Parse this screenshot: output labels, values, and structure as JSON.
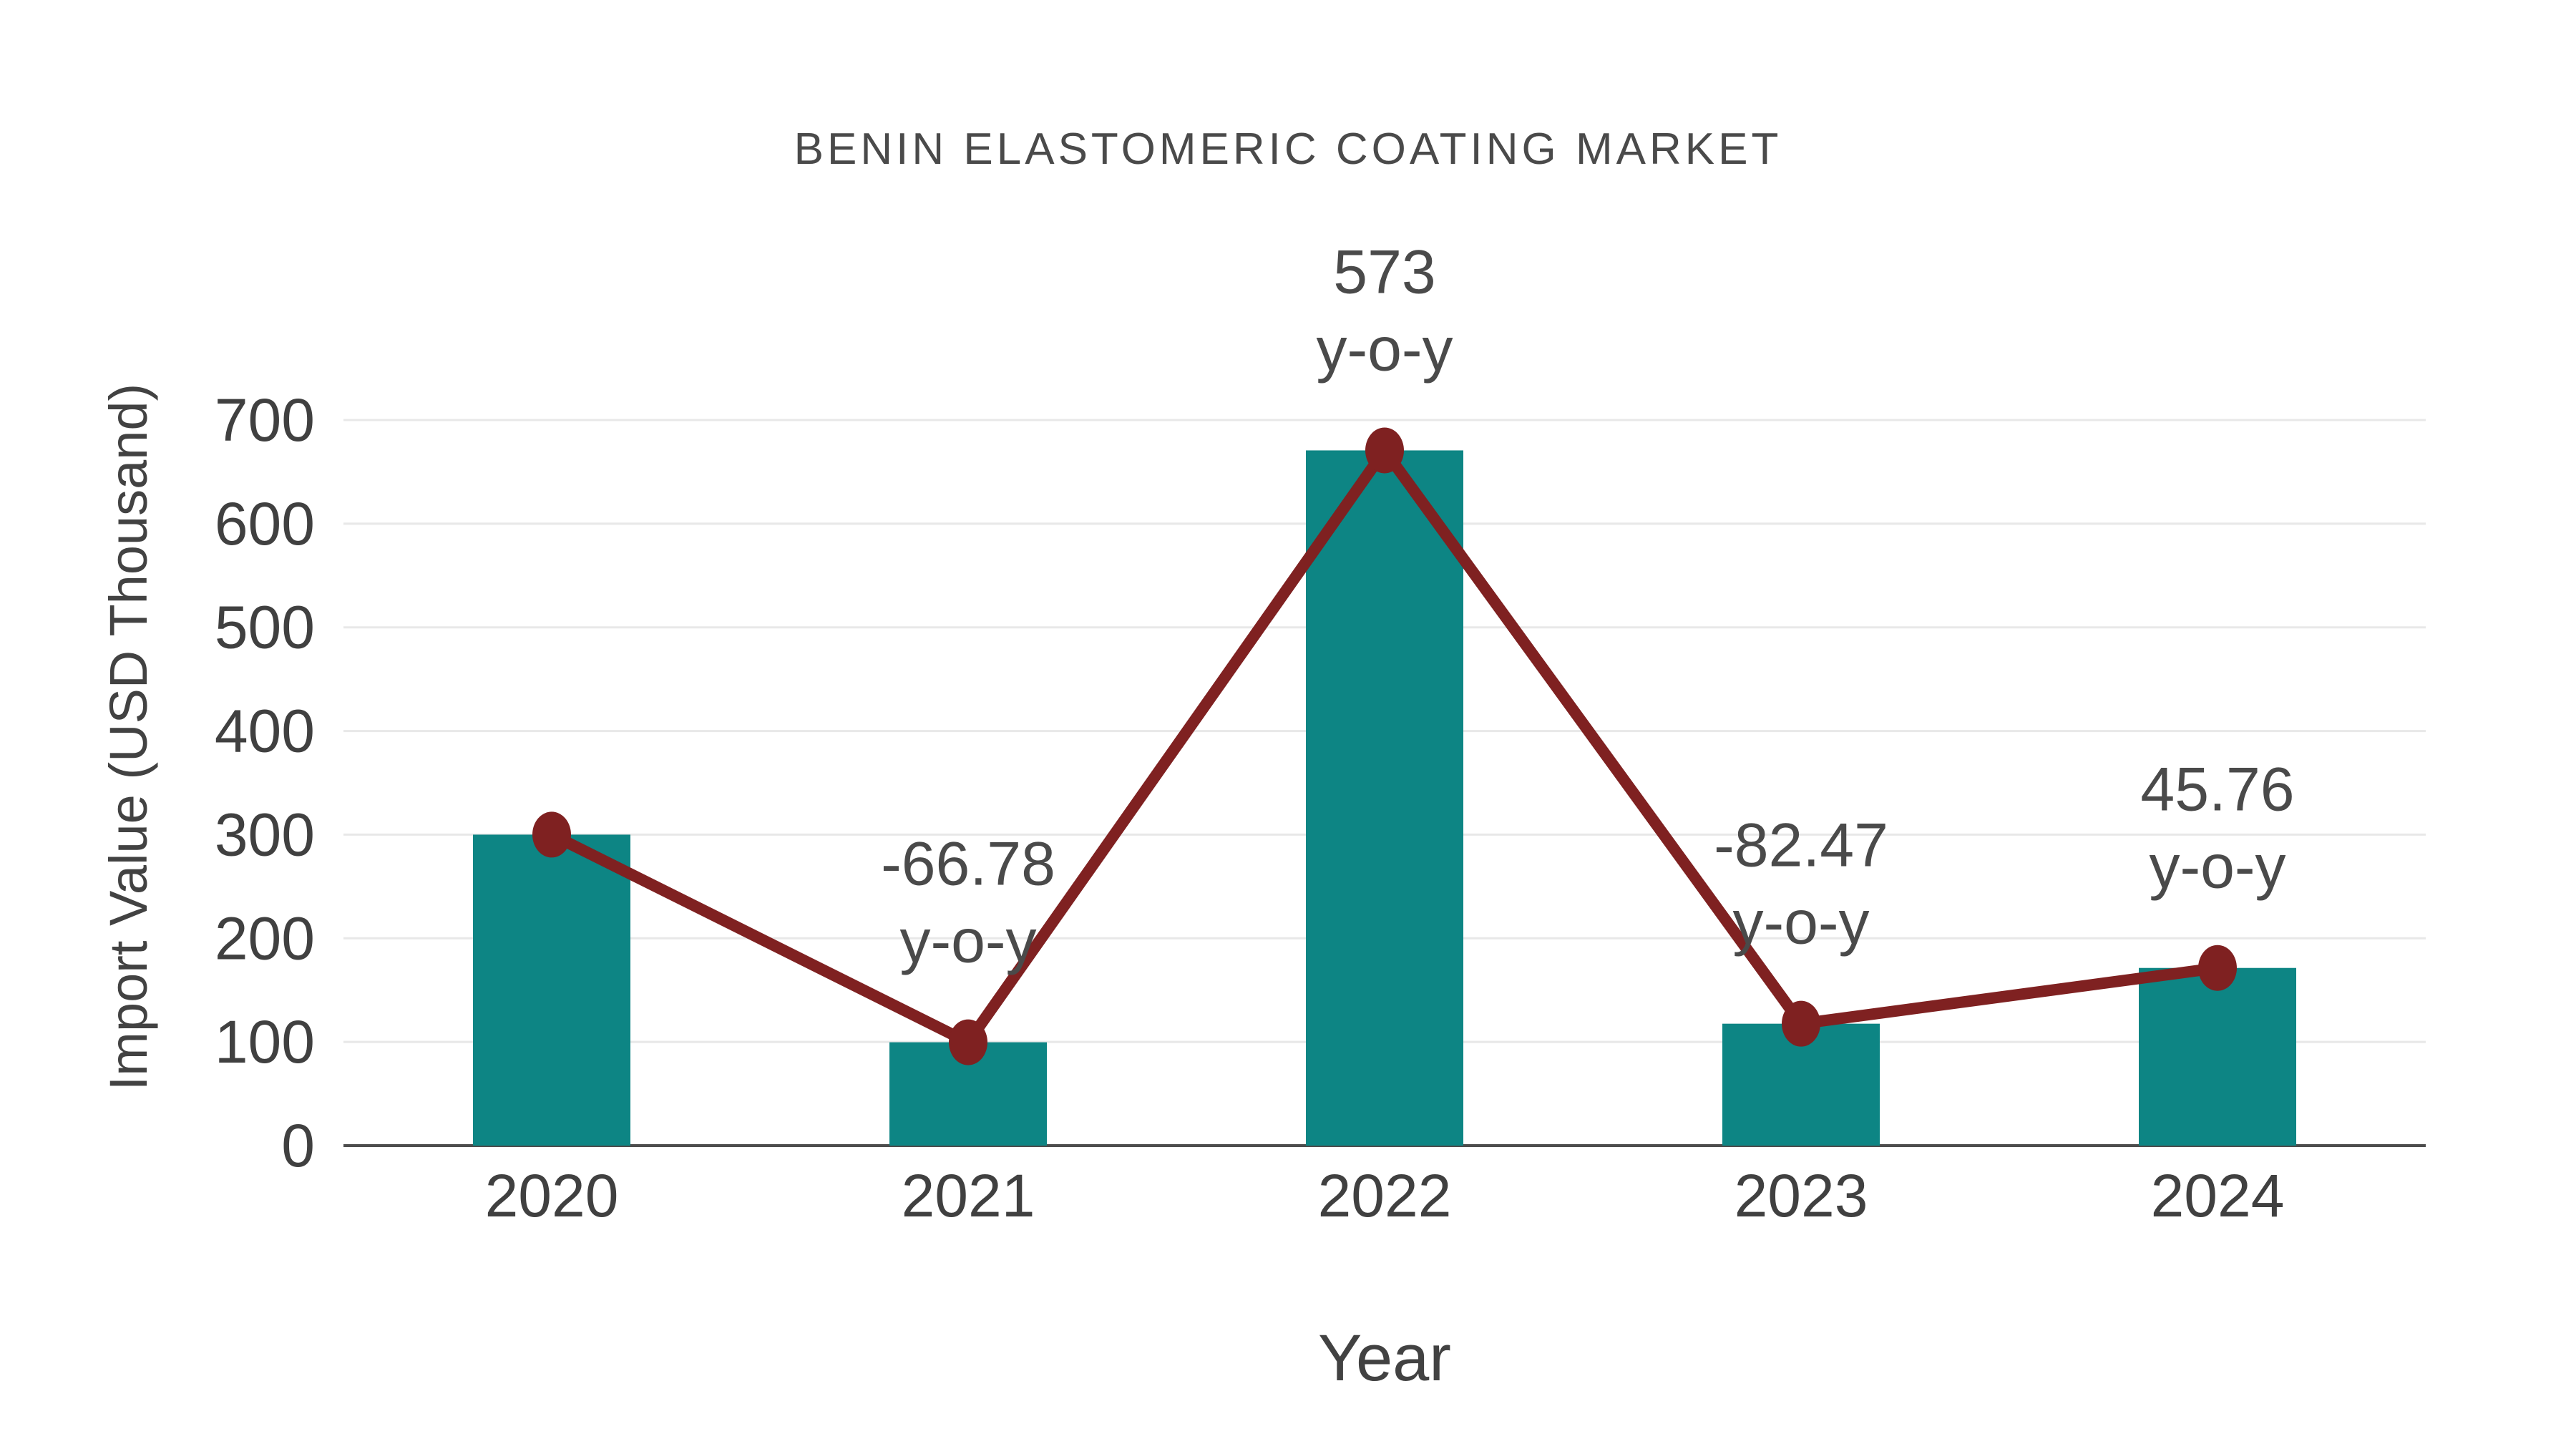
{
  "page": {
    "background": "#ffffff"
  },
  "colors": {
    "bar": "#0d8584",
    "line": "#7f2121",
    "marker": "#7f2121",
    "grid": "#e8e8e8",
    "axis_line": "#4d4d4d",
    "tick_text": "#404040",
    "title_text": "#4a4a4a",
    "annotation_text": "#4a4a4a"
  },
  "chart_data": {
    "type": "combo-bar-line",
    "title": "BENIN ELASTOMERIC COATING MARKET",
    "xlabel": "Year",
    "ylabel": "Import Value (USD Thousand)",
    "categories": [
      "2020",
      "2021",
      "2022",
      "2023",
      "2024"
    ],
    "series": [
      {
        "name": "Import Value bars",
        "type": "bar",
        "color": "#0d8584",
        "values": [
          300,
          99.7,
          670.7,
          117.6,
          171.4
        ]
      },
      {
        "name": "Import Value trend line",
        "type": "line",
        "color": "#7f2121",
        "values": [
          300,
          99.7,
          670.7,
          117.6,
          171.4
        ]
      }
    ],
    "annotations": [
      {
        "category_index": 1,
        "line1": "-66.78",
        "line2": "y-o-y",
        "y_o_y_percent": -66.78
      },
      {
        "category_index": 2,
        "line1": "573",
        "line2": "y-o-y",
        "y_o_y_percent": 573
      },
      {
        "category_index": 3,
        "line1": "-82.47",
        "line2": "y-o-y",
        "y_o_y_percent": -82.47
      },
      {
        "category_index": 4,
        "line1": "45.76",
        "line2": "y-o-y",
        "y_o_y_percent": 45.76
      }
    ],
    "ylim": [
      0,
      700
    ],
    "yticks": [
      0,
      100,
      200,
      300,
      400,
      500,
      600,
      700
    ],
    "grid": true,
    "legend_position": "none"
  }
}
